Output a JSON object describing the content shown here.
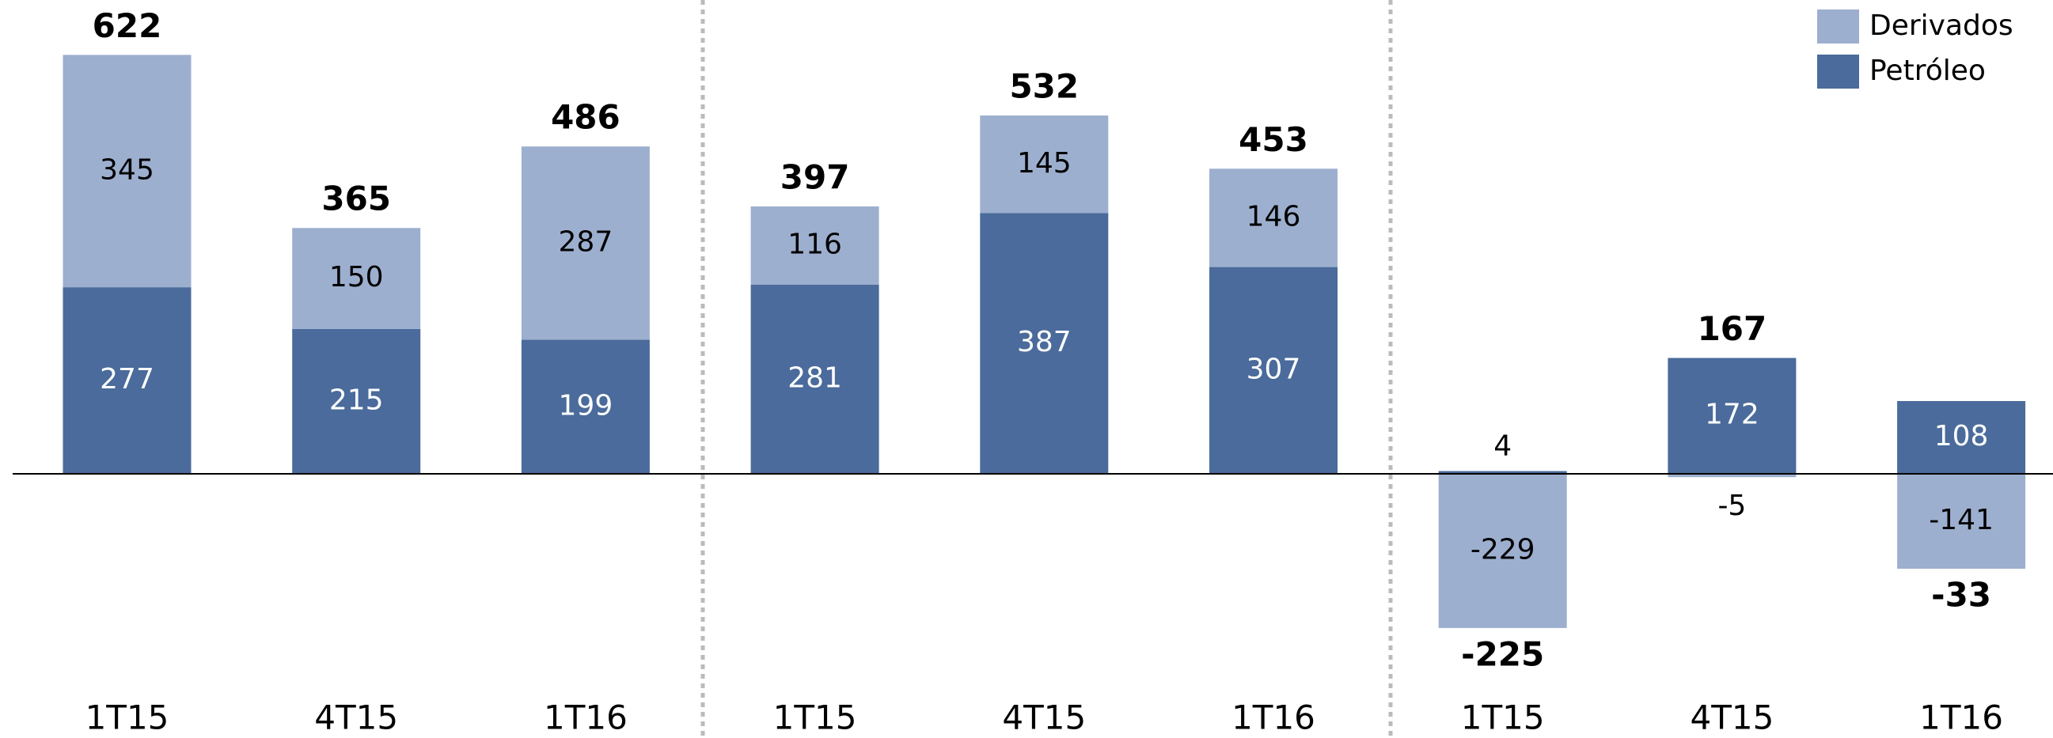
{
  "chart_data": {
    "type": "stacked_bar",
    "categories": [
      "1T15",
      "4T15",
      "1T16",
      "1T15",
      "4T15",
      "1T16",
      "1T15",
      "4T15",
      "1T16"
    ],
    "series": [
      {
        "name": "Petróleo",
        "color": "#4a6b9b",
        "values": [
          277,
          215,
          199,
          281,
          387,
          307,
          4,
          172,
          108
        ]
      },
      {
        "name": "Derivados",
        "color": "#9dafcf",
        "values": [
          345,
          150,
          287,
          116,
          145,
          146,
          -229,
          -5,
          -141
        ]
      }
    ],
    "totals": [
      622,
      365,
      486,
      397,
      532,
      453,
      -225,
      167,
      -33
    ],
    "ylim": [
      -390,
      700
    ],
    "legend": "upper right"
  }
}
